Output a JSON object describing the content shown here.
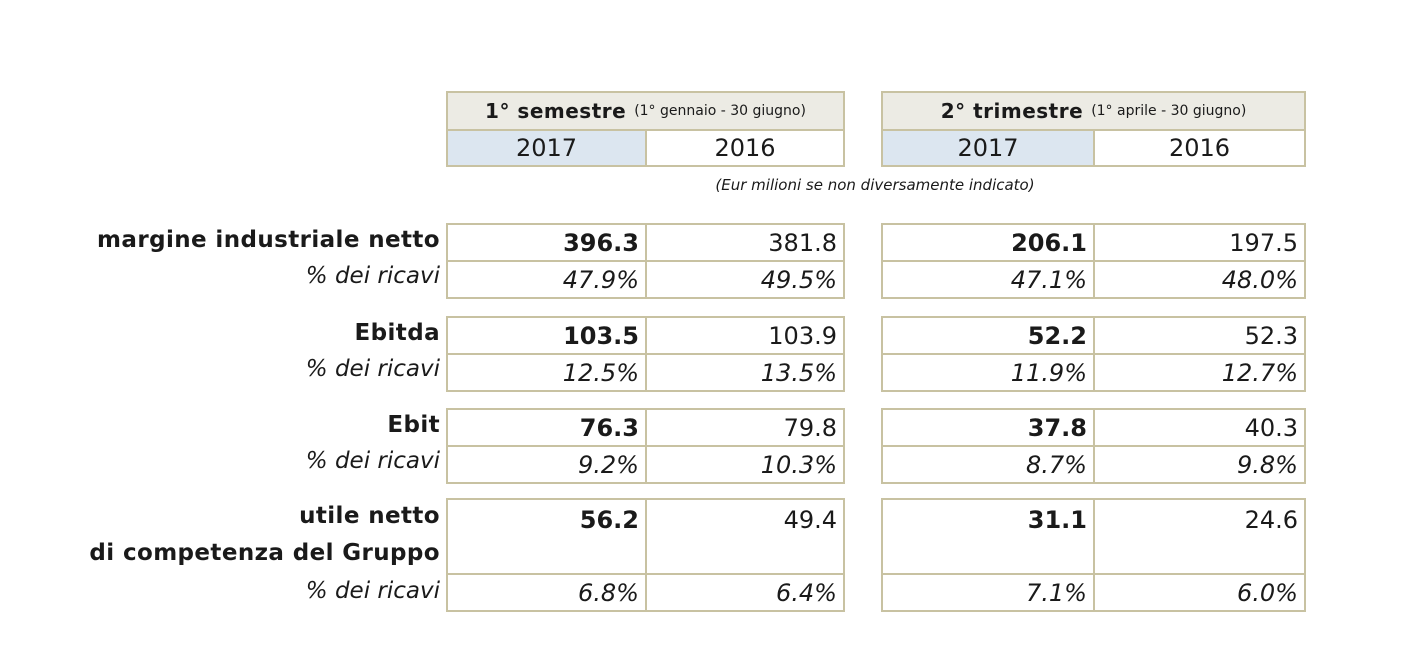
{
  "header": {
    "semester": {
      "title": "1° semestre",
      "range": "(1° gennaio - 30 giugno)"
    },
    "quarter": {
      "title": "2° trimestre",
      "range": "(1° aprile - 30 giugno)"
    },
    "years": [
      "2017",
      "2016",
      "2017",
      "2016"
    ]
  },
  "note": "(Eur milioni se non diversamente indicato)",
  "rows": [
    {
      "label": "margine industriale netto",
      "pct_label": "% dei ricavi",
      "values": [
        "396.3",
        "381.8",
        "206.1",
        "197.5"
      ],
      "pcts": [
        "47.9%",
        "49.5%",
        "47.1%",
        "48.0%"
      ]
    },
    {
      "label": "Ebitda",
      "pct_label": "% dei ricavi",
      "values": [
        "103.5",
        "103.9",
        "52.2",
        "52.3"
      ],
      "pcts": [
        "12.5%",
        "13.5%",
        "11.9%",
        "12.7%"
      ]
    },
    {
      "label": "Ebit",
      "pct_label": "% dei ricavi",
      "values": [
        "76.3",
        "79.8",
        "37.8",
        "40.3"
      ],
      "pcts": [
        "9.2%",
        "10.3%",
        "8.7%",
        "9.8%"
      ]
    },
    {
      "label": "utile netto",
      "label_line2": "di competenza del Gruppo",
      "pct_label": "% dei ricavi",
      "values": [
        "56.2",
        "49.4",
        "31.1",
        "24.6"
      ],
      "pcts": [
        "6.8%",
        "6.4%",
        "7.1%",
        "6.0%"
      ]
    }
  ],
  "colors": {
    "border": "#c8c2a2",
    "header_bg": "#ecebe4",
    "highlight_year": "#dce6f0"
  }
}
